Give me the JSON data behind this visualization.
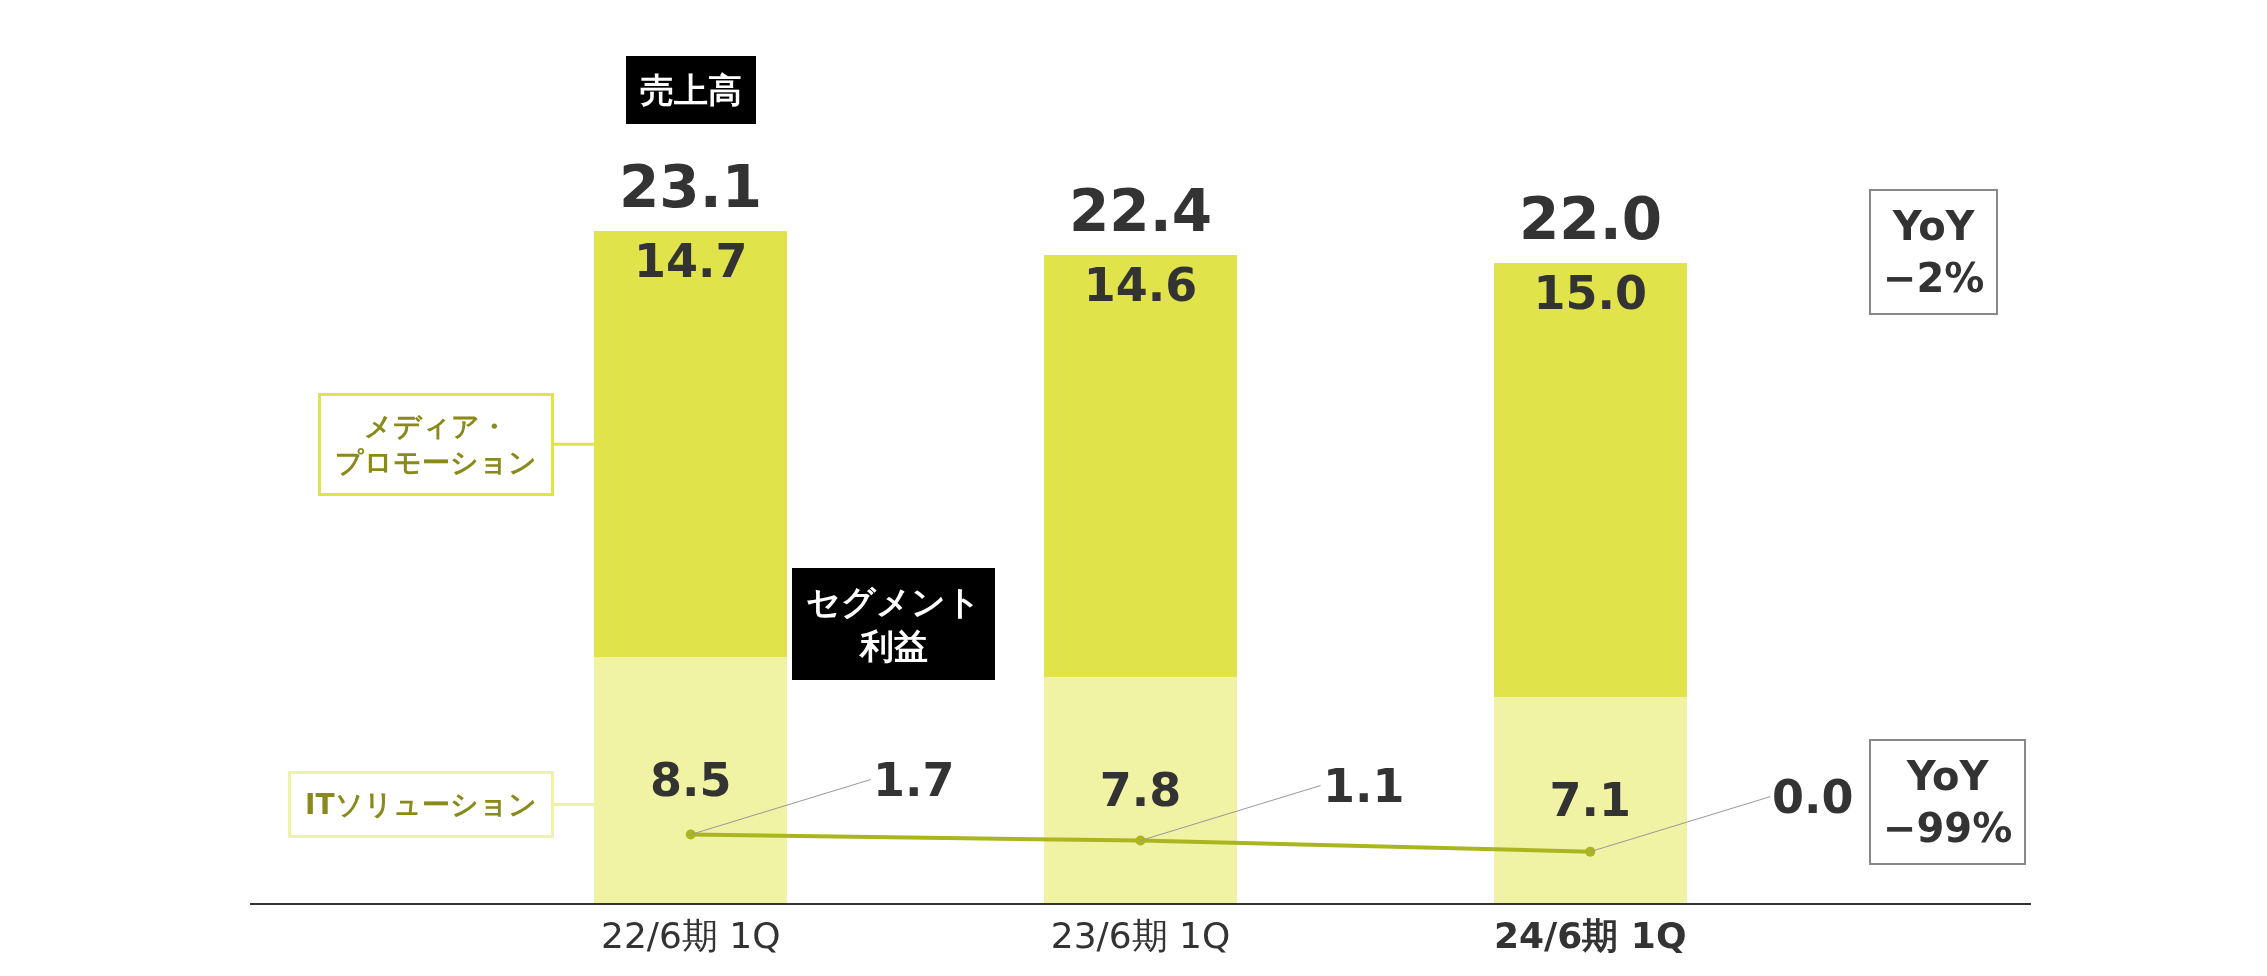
{
  "chart_data": {
    "type": "bar",
    "stacked": true,
    "categories": [
      "22/6期 1Q",
      "23/6期 1Q",
      "24/6期 1Q"
    ],
    "series": [
      {
        "name": "ITソリューション",
        "color": "#f0f2a4",
        "values": [
          8.5,
          7.8,
          7.1
        ],
        "value_labels": [
          "8.5",
          "7.8",
          "7.1"
        ]
      },
      {
        "name": "メディア・プロモーション",
        "color": "#e1e34a",
        "values": [
          14.7,
          14.6,
          15.0
        ],
        "value_labels": [
          "14.7",
          "14.6",
          "15.0"
        ]
      },
      {
        "type": "line",
        "axis": "y2",
        "color": "#aab520",
        "marker": "circle",
        "values": [
          1.7,
          1.1,
          0.0
        ],
        "value_labels": [
          "1.7",
          "1.1",
          "0.0"
        ]
      }
    ],
    "totals": [
      "23.1",
      "22.4",
      "22.0"
    ],
    "tick_labels": "x",
    "legend": "left",
    "annotations": [
      "売上高",
      "セグメント利益",
      "YoY\n−2%",
      "YoY\n−99%"
    ]
  }
}
